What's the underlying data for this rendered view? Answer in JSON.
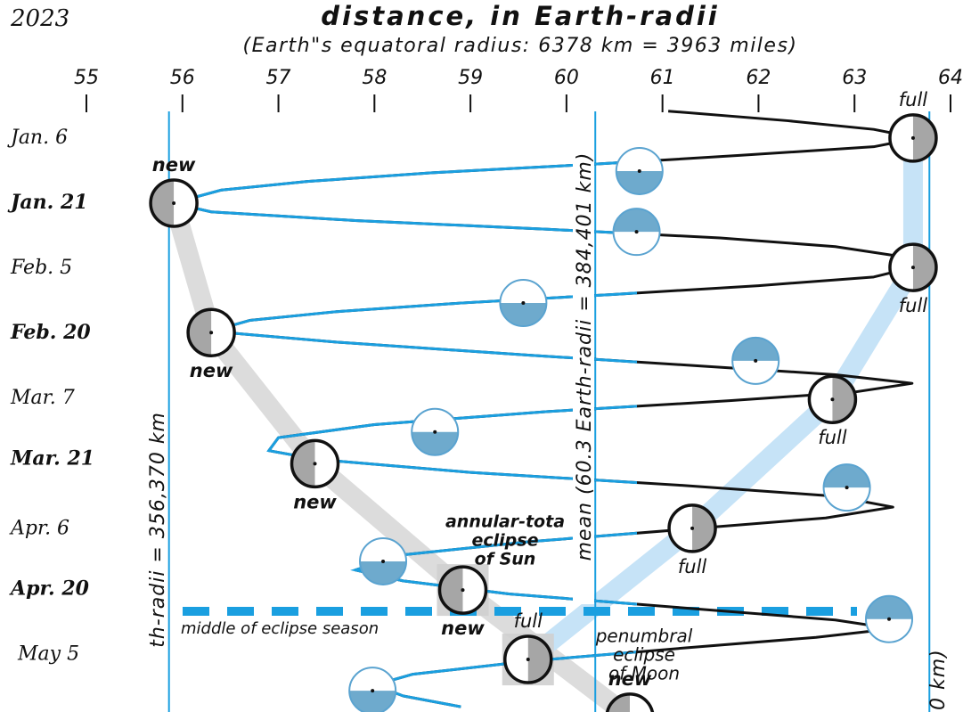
{
  "year": "2023",
  "chart_data": {
    "type": "line",
    "title": "distance, in Earth-radii",
    "subtitle": "(Earth\"s equatoral radius: 6378 km = 3963 miles)",
    "xlim": [
      54.1,
      64.13
    ],
    "xticks": [
      55,
      56,
      57,
      58,
      59,
      60,
      61,
      62,
      63,
      64
    ],
    "ylim": [
      -25.8,
      138.2
    ],
    "yticks": [
      {
        "value": 6,
        "label": "Jan. 6"
      },
      {
        "value": 21,
        "label": "Jan. 21"
      },
      {
        "value": 36,
        "label": "Feb. 5"
      },
      {
        "value": 51,
        "label": "Feb. 20"
      },
      {
        "value": 66,
        "label": "Mar. 7"
      },
      {
        "value": 80,
        "label": "Mar. 21"
      },
      {
        "value": 96,
        "label": "Apr. 6"
      },
      {
        "value": 110,
        "label": "Apr. 20"
      },
      {
        "value": 125,
        "label": "May 5"
      }
    ],
    "series": [
      {
        "color": "#111111",
        "near_new_color": "#1a9fe0",
        "days": [
          -0.2,
          2,
          4,
          6,
          8,
          10,
          12,
          14,
          16,
          18,
          21,
          23,
          25,
          27,
          29,
          31,
          33,
          35.5,
          38,
          40,
          42,
          44,
          46,
          48,
          50.5,
          53,
          56,
          58.5,
          60.5,
          62.5,
          64.5,
          66.5,
          69,
          72,
          75,
          78,
          80,
          83,
          86,
          88.5,
          91,
          93.5,
          96,
          99,
          102,
          105.5,
          108,
          111,
          114,
          117,
          119,
          121,
          123.5,
          126.5,
          129.5,
          132,
          134.5,
          137
        ],
        "values": [
          61.06,
          62.3,
          63.2,
          63.66,
          63.2,
          61.8,
          60.3,
          58.6,
          57.3,
          56.4,
          55.9,
          56.3,
          57.8,
          59.8,
          61.6,
          62.8,
          63.4,
          63.66,
          63.2,
          62.0,
          60.5,
          58.9,
          57.6,
          56.7,
          56.3,
          57.6,
          59.6,
          61.4,
          62.8,
          63.6,
          63.0,
          61.7,
          59.8,
          58.0,
          57.0,
          56.9,
          57.4,
          59.0,
          61.2,
          62.8,
          63.4,
          62.7,
          61.3,
          59.6,
          58.3,
          57.8,
          58.3,
          59.4,
          61.1,
          62.8,
          63.4,
          62.6,
          61.2,
          59.6,
          58.4,
          58.0,
          58.3,
          58.9
        ]
      }
    ],
    "phases": [
      {
        "day": 6.0,
        "value": 63.61,
        "shade": "right",
        "label": "full"
      },
      {
        "day": 13.6,
        "value": 60.76,
        "shade": "bottom"
      },
      {
        "day": 21.0,
        "value": 55.91,
        "shade": "left",
        "label": "new",
        "bold": true
      },
      {
        "day": 27.6,
        "value": 60.73,
        "shade": "top"
      },
      {
        "day": 35.8,
        "value": 63.61,
        "shade": "right",
        "label": "full"
      },
      {
        "day": 44.0,
        "value": 59.55,
        "shade": "bottom"
      },
      {
        "day": 50.8,
        "value": 56.3,
        "shade": "left",
        "label": "new",
        "bold": true
      },
      {
        "day": 57.3,
        "value": 61.97,
        "shade": "top"
      },
      {
        "day": 66.2,
        "value": 62.77,
        "shade": "right",
        "label": "full"
      },
      {
        "day": 73.7,
        "value": 58.63,
        "shade": "bottom"
      },
      {
        "day": 81.0,
        "value": 57.38,
        "shade": "left",
        "label": "new",
        "bold": true
      },
      {
        "day": 86.5,
        "value": 62.92,
        "shade": "top"
      },
      {
        "day": 95.9,
        "value": 61.31,
        "shade": "right",
        "label": "full"
      },
      {
        "day": 103.5,
        "value": 58.09,
        "shade": "bottom"
      },
      {
        "day": 110.1,
        "value": 58.92,
        "shade": "left",
        "label": "new",
        "bold": true,
        "eclipse": true
      },
      {
        "day": 116.8,
        "value": 63.36,
        "shade": "top"
      },
      {
        "day": 126.1,
        "value": 59.6,
        "shade": "right",
        "label": "full",
        "eclipse": true
      },
      {
        "day": 133.3,
        "value": 57.98,
        "shade": "bottom"
      },
      {
        "day": 139.4,
        "value": 60.66,
        "shade": "left",
        "label": "new",
        "bold": true
      }
    ],
    "ref_lines": [
      {
        "value": 55.86,
        "label": "th-radii = 356,370 km"
      },
      {
        "value": 60.3,
        "label": "mean (60.3 Earth-radii = 384,401 km)"
      },
      {
        "value": 63.78,
        "label": "0 km)"
      }
    ],
    "eclipse_season": {
      "day": 115.0,
      "label": "middle of eclipse season"
    },
    "annotations": [
      {
        "lines": [
          "annular-tota",
          "eclipse",
          "of Sun"
        ]
      },
      {
        "lines": [
          "penumbral",
          "eclipse",
          "of Moon"
        ]
      }
    ]
  }
}
